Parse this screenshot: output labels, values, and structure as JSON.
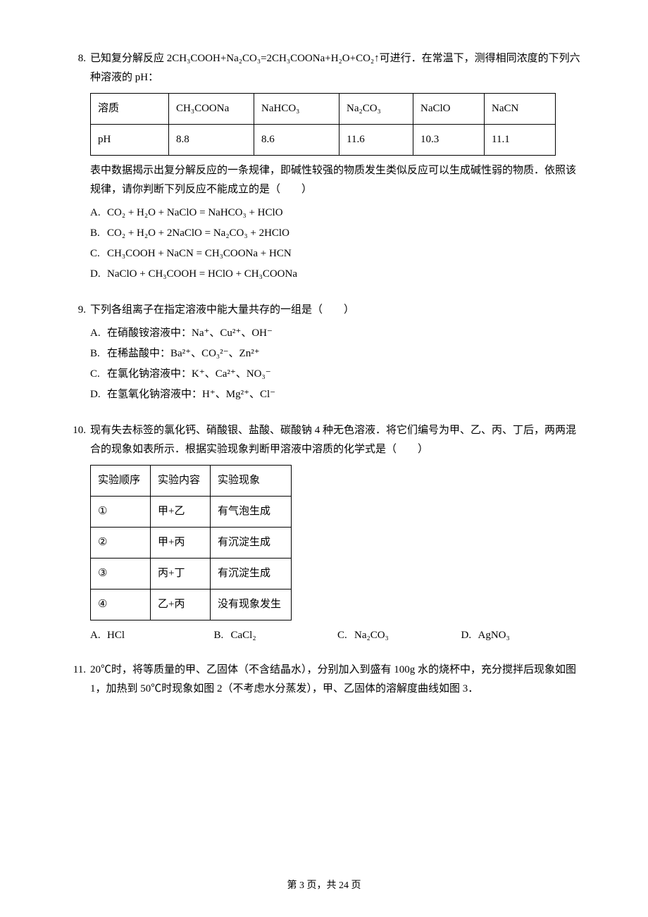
{
  "page": {
    "footer": "第 3 页，共 24 页"
  },
  "q8": {
    "num": "8.",
    "text1": "已知复分解反应 2CH₃COOH+Na₂CO₃=2CH₃COONa+H₂O+CO₂↑可进行．在常温下，测得相同浓度的下列六种溶液的 pH：",
    "table": {
      "r1": [
        "溶质",
        "CH₃COONa",
        "NaHCO₃",
        "Na₂CO₃",
        "NaClO",
        "NaCN"
      ],
      "r2": [
        "pH",
        "8.8",
        "8.6",
        "11.6",
        "10.3",
        "11.1"
      ]
    },
    "text2": "表中数据揭示出复分解反应的一条规律，即碱性较强的物质发生类似反应可以生成碱性弱的物质．依照该规律，请你判断下列反应不能成立的是（　　）",
    "opts": {
      "A": "CO₂ + H₂O + NaClO = NaHCO₃ + HClO",
      "B": "CO₂ + H₂O + 2NaClO = Na₂CO₃ + 2HClO",
      "C": "CH₃COOH + NaCN = CH₃COONa + HCN",
      "D": "NaClO + CH₃COOH = HClO + CH₃COONa"
    }
  },
  "q9": {
    "num": "9.",
    "text": "下列各组离子在指定溶液中能大量共存的一组是（　　）",
    "opts": {
      "A": "在硝酸铵溶液中：Na⁺、Cu²⁺、OH⁻",
      "B": "在稀盐酸中：Ba²⁺、CO₃²⁻、Zn²⁺",
      "C": "在氯化钠溶液中：K⁺、Ca²⁺、NO₃⁻",
      "D": "在氢氧化钠溶液中：H⁺、Mg²⁺、Cl⁻"
    }
  },
  "q10": {
    "num": "10.",
    "text": "现有失去标签的氯化钙、硝酸银、盐酸、碳酸钠 4 种无色溶液．将它们编号为甲、乙、丙、丁后，两两混合的现象如表所示．根据实验现象判断甲溶液中溶质的化学式是（　　）",
    "table": {
      "head": [
        "实验顺序",
        "实验内容",
        "实验现象"
      ],
      "rows": [
        [
          "①",
          "甲+乙",
          "有气泡生成"
        ],
        [
          "②",
          "甲+丙",
          "有沉淀生成"
        ],
        [
          "③",
          "丙+丁",
          "有沉淀生成"
        ],
        [
          "④",
          "乙+丙",
          "没有现象发生"
        ]
      ]
    },
    "opts": {
      "A": "HCl",
      "B": "CaCl₂",
      "C": "Na₂CO₃",
      "D": "AgNO₃"
    }
  },
  "q11": {
    "num": "11.",
    "text": "20℃时，将等质量的甲、乙固体（不含结晶水），分别加入到盛有 100g 水的烧杯中，充分搅拌后现象如图 1，加热到 50℃时现象如图 2（不考虑水分蒸发），甲、乙固体的溶解度曲线如图 3．"
  }
}
